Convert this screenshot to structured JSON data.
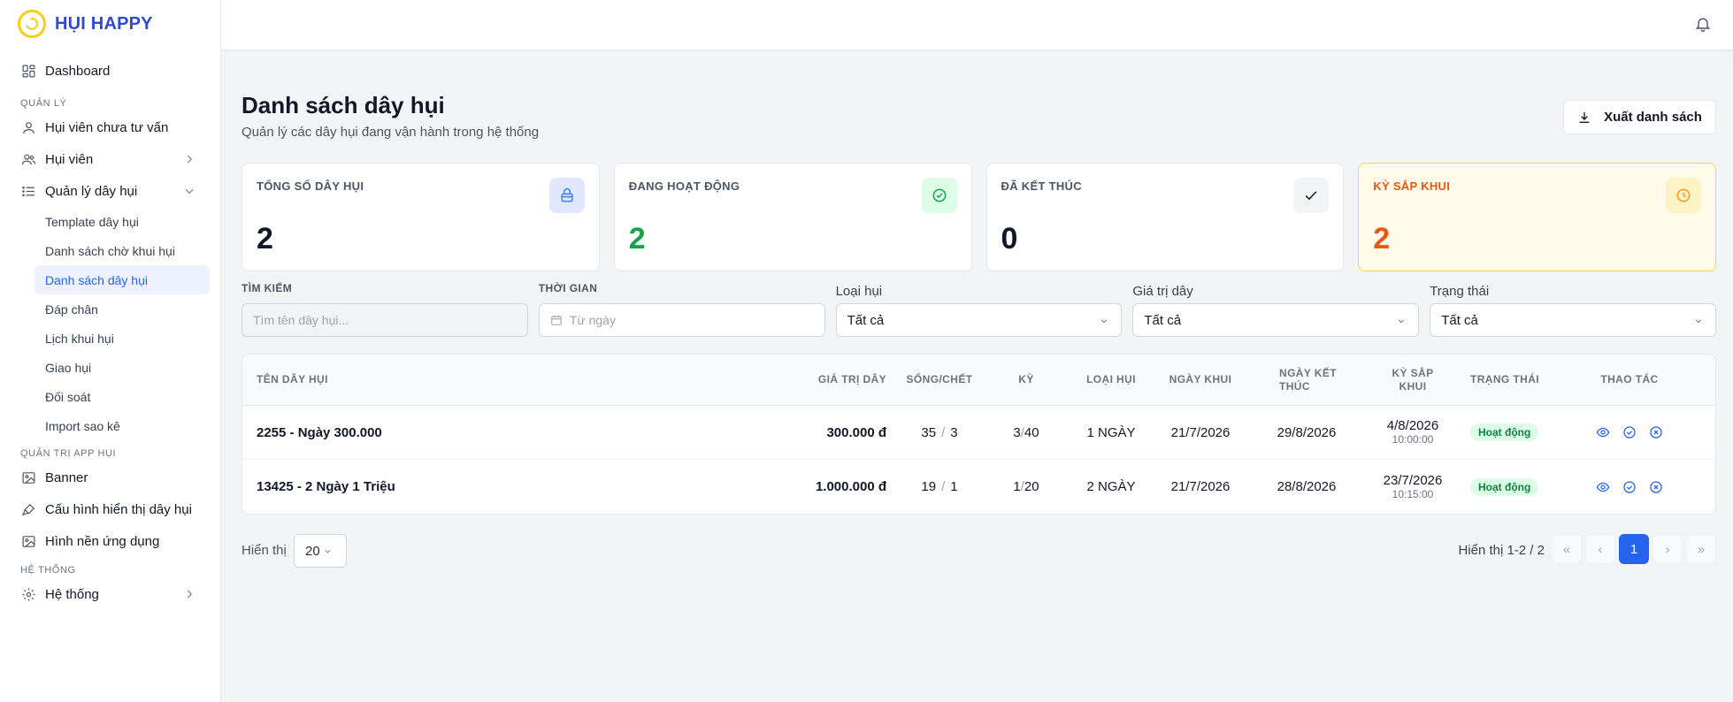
{
  "brand": {
    "name": "HỤI HAPPY"
  },
  "sidebar": {
    "dashboard": "Dashboard",
    "section_manage": "QUẢN LÝ",
    "consult": "Hụi viên chưa tư vấn",
    "members": "Hụi viên",
    "manage_lines": "Quản lý dây hụi",
    "sub_items": [
      "Template dây hụi",
      "Danh sách chờ khui hụi",
      "Danh sách dây hụi",
      "Đáp chân",
      "Lịch khui hụi",
      "Giao hụi",
      "Đối soát",
      "Import sao kê"
    ],
    "section_app": "QUẢN TRỊ APP HỤI",
    "banner": "Banner",
    "display_config": "Cấu hình hiển thị dây hụi",
    "app_bg": "Hình nền ứng dụng",
    "section_system": "HỆ THỐNG",
    "system": "Hệ thống"
  },
  "header": {
    "title": "Danh sách dây hụi",
    "subtitle": "Quản lý các dây hụi đang vận hành trong hệ thống",
    "export_label": "Xuất danh sách"
  },
  "stats": [
    {
      "label": "TỔNG SỐ DÂY HỤI",
      "value": "2",
      "icon": "archive-icon"
    },
    {
      "label": "ĐANG HOẠT ĐỘNG",
      "value": "2",
      "icon": "check-circle-icon"
    },
    {
      "label": "ĐÃ KẾT THÚC",
      "value": "0",
      "icon": "check-icon"
    },
    {
      "label": "KỲ SẮP KHUI",
      "value": "2",
      "icon": "clock-icon"
    }
  ],
  "filters": {
    "search_label": "TÌM KIẾM",
    "search_placeholder": "Tìm tên dây hụi...",
    "time_label": "THỜI GIAN",
    "time_placeholder": "Từ ngày",
    "type_label": "Loại hụi",
    "type_value": "Tất cả",
    "value_label": "Giá trị dây",
    "value_value": "Tất cả",
    "status_label": "Trạng thái",
    "status_value": "Tất cả"
  },
  "table": {
    "headers": {
      "name": "TÊN DÂY HỤI",
      "value": "GIÁ TRỊ DÂY",
      "life": "SỐNG/CHẾT",
      "ky": "KỲ",
      "type": "LOẠI HỤI",
      "open": "NGÀY KHUI",
      "end": "NGÀY KẾT THÚC",
      "next": "KỲ SẮP KHUI",
      "status": "TRẠNG THÁI",
      "actions": "THAO TÁC"
    },
    "rows": [
      {
        "name": "2255 - Ngày 300.000",
        "value": "300.000 đ",
        "alive": "35",
        "dead": "3",
        "ky_cur": "3",
        "ky_total": "40",
        "type": "1 NGÀY",
        "open": "21/7/2026",
        "end": "29/8/2026",
        "next_date": "4/8/2026",
        "next_time": "10:00:00",
        "status": "Hoạt động"
      },
      {
        "name": "13425 - 2 Ngày 1 Triệu",
        "value": "1.000.000 đ",
        "alive": "19",
        "dead": "1",
        "ky_cur": "1",
        "ky_total": "20",
        "type": "2 NGÀY",
        "open": "21/7/2026",
        "end": "28/8/2026",
        "next_date": "23/7/2026",
        "next_time": "10:15:00",
        "status": "Hoạt động"
      }
    ]
  },
  "pagination": {
    "show_label": "Hiển thị",
    "page_size": "20",
    "range": "Hiển thị 1-2 / 2",
    "current_page": "1"
  }
}
